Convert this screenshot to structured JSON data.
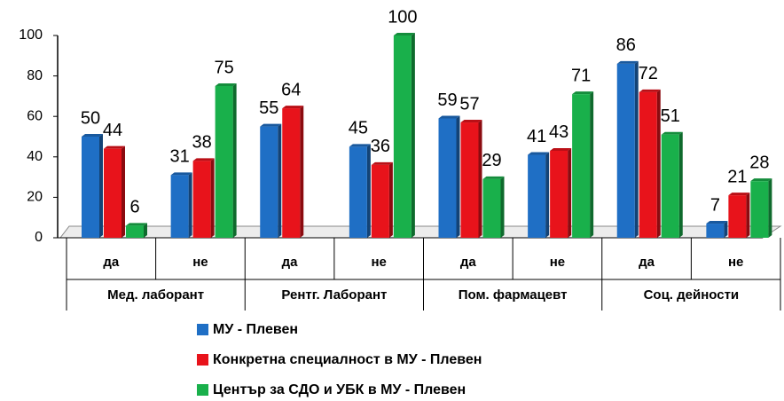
{
  "chart_data": {
    "type": "bar",
    "categories": [
      "да",
      "не",
      "да",
      "не",
      "да",
      "не",
      "да",
      "не"
    ],
    "groups": [
      "Мед. лаборант",
      "Рентг. Лаборант",
      "Пом. фармацевт",
      "Соц. дейности"
    ],
    "series": [
      {
        "name": "МУ - Плевен",
        "color": "#1f6fc5",
        "values": [
          50,
          31,
          55,
          45,
          59,
          41,
          86,
          7
        ]
      },
      {
        "name": "Конкретна специалност в МУ - Плевен",
        "color": "#e8131b",
        "values": [
          44,
          38,
          64,
          36,
          57,
          43,
          72,
          21
        ]
      },
      {
        "name": "Център за СДО и УБК в МУ - Плевен",
        "color": "#19b04b",
        "values": [
          6,
          75,
          null,
          100,
          29,
          71,
          51,
          28
        ]
      }
    ],
    "ylim": [
      0,
      100
    ],
    "yticks": [
      0,
      20,
      40,
      60,
      80,
      100
    ]
  }
}
